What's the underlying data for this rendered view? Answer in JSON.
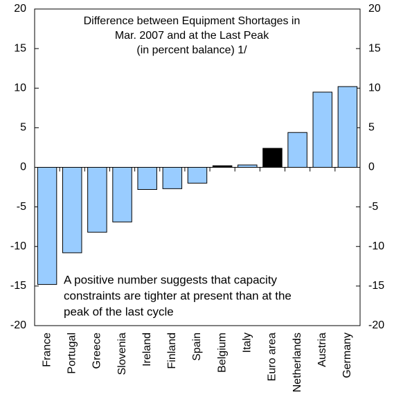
{
  "chart_data": {
    "type": "bar",
    "title": [
      "Difference between Equipment Shortages in",
      "Mar. 2007 and at the Last Peak",
      "(in percent balance) 1/"
    ],
    "annotation": [
      "A positive number suggests that capacity",
      "constraints are tighter at present than at the",
      "peak of the last cycle"
    ],
    "categories": [
      "France",
      "Portugal",
      "Greece",
      "Slovenia",
      "Ireland",
      "Finland",
      "Spain",
      "Belgium",
      "Italy",
      "Euro area",
      "Netherlands",
      "Austria",
      "Germany"
    ],
    "values": [
      -14.8,
      -10.8,
      -8.2,
      -6.9,
      -2.8,
      -2.7,
      -2.0,
      0.2,
      0.3,
      2.4,
      4.4,
      9.5,
      10.2
    ],
    "colors": [
      "#99ccff",
      "#99ccff",
      "#99ccff",
      "#99ccff",
      "#99ccff",
      "#99ccff",
      "#99ccff",
      "#000000",
      "#99ccff",
      "#000000",
      "#99ccff",
      "#99ccff",
      "#99ccff"
    ],
    "ylim": [
      -20,
      20
    ],
    "yticks": [
      -20,
      -15,
      -10,
      -5,
      0,
      5,
      10,
      15,
      20
    ],
    "y2ticks": [
      -20,
      -15,
      -10,
      -5,
      0,
      5,
      10,
      15,
      20
    ]
  }
}
